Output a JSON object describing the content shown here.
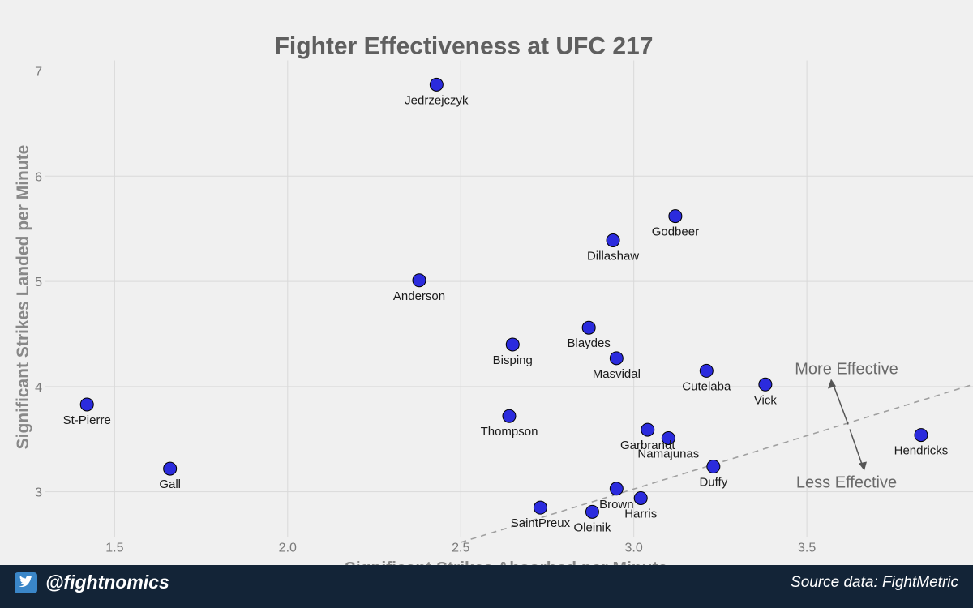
{
  "chart_data": {
    "type": "scatter",
    "title": "Fighter Effectiveness at UFC 217",
    "xlabel": "Significant Strikes Absorbed per Minute",
    "ylabel": "Significant Strikes Landed per Minute",
    "xlim": [
      1.3,
      3.98
    ],
    "ylim": [
      2.57,
      7.1
    ],
    "xticks": [
      "1.5",
      "2.0",
      "2.5",
      "3.0",
      "3.5"
    ],
    "yticks": [
      "3",
      "4",
      "5",
      "6",
      "7"
    ],
    "grid": true,
    "point_color": "#2b2bdd",
    "points": [
      {
        "name": "Jedrzejczyk",
        "x": 2.43,
        "y": 6.87
      },
      {
        "name": "Godbeer",
        "x": 3.12,
        "y": 5.62
      },
      {
        "name": "Dillashaw",
        "x": 2.94,
        "y": 5.39
      },
      {
        "name": "Anderson",
        "x": 2.38,
        "y": 5.01
      },
      {
        "name": "Blaydes",
        "x": 2.87,
        "y": 4.56
      },
      {
        "name": "Bisping",
        "x": 2.65,
        "y": 4.4
      },
      {
        "name": "Masvidal",
        "x": 2.95,
        "y": 4.27
      },
      {
        "name": "Cutelaba",
        "x": 3.21,
        "y": 4.15
      },
      {
        "name": "Vick",
        "x": 3.38,
        "y": 4.02
      },
      {
        "name": "St-Pierre",
        "x": 1.42,
        "y": 3.83
      },
      {
        "name": "Thompson",
        "x": 2.64,
        "y": 3.72
      },
      {
        "name": "Garbrandt",
        "x": 3.04,
        "y": 3.59
      },
      {
        "name": "Namajunas",
        "x": 3.1,
        "y": 3.51
      },
      {
        "name": "Hendricks",
        "x": 3.83,
        "y": 3.54
      },
      {
        "name": "Duffy",
        "x": 3.23,
        "y": 3.24
      },
      {
        "name": "Gall",
        "x": 1.66,
        "y": 3.22
      },
      {
        "name": "Brown",
        "x": 2.95,
        "y": 3.03
      },
      {
        "name": "Harris",
        "x": 3.02,
        "y": 2.94
      },
      {
        "name": "SaintPreux",
        "x": 2.73,
        "y": 2.85
      },
      {
        "name": "Oleinik",
        "x": 2.88,
        "y": 2.81
      }
    ],
    "reference_line": {
      "x": [
        2.5,
        3.98
      ],
      "y": [
        2.52,
        4.02
      ],
      "style": "dashed",
      "color": "#a0a0a0"
    },
    "annotations": {
      "more": "More Effective",
      "less": "Less Effective"
    }
  },
  "footer": {
    "handle": "@fightnomics",
    "source": "Source data: FightMetric",
    "icon": "twitter-bird-icon",
    "background": "#132437"
  }
}
